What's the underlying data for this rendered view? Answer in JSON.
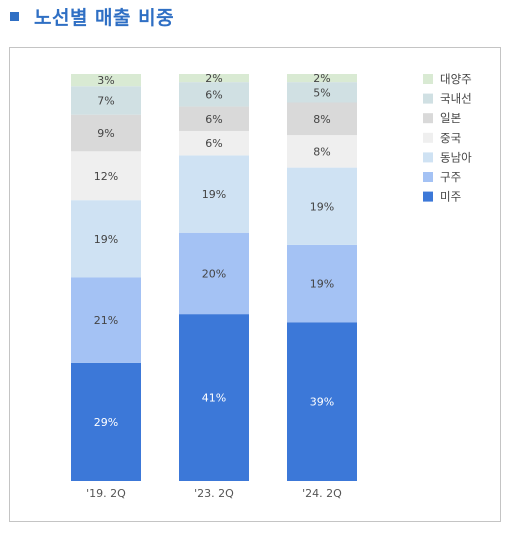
{
  "header": {
    "title": "노선별 매출 비중"
  },
  "chart_data": {
    "type": "bar",
    "stacked": true,
    "normalized_percent": true,
    "categories": [
      "'19. 2Q",
      "'23. 2Q",
      "'24. 2Q"
    ],
    "series": [
      {
        "name": "미주",
        "values": [
          29,
          41,
          39
        ],
        "labels": [
          "29%",
          "41%",
          "39%"
        ],
        "color": "#3c78d8"
      },
      {
        "name": "구주",
        "values": [
          21,
          20,
          19
        ],
        "labels": [
          "21%",
          "20%",
          "19%"
        ],
        "color": "#a4c2f4"
      },
      {
        "name": "동남아",
        "values": [
          19,
          19,
          19
        ],
        "labels": [
          "19%",
          "19%",
          "19%"
        ],
        "color": "#cfe2f3"
      },
      {
        "name": "중국",
        "values": [
          12,
          6,
          8
        ],
        "labels": [
          "12%",
          "6%",
          "8%"
        ],
        "color": "#efefef"
      },
      {
        "name": "일본",
        "values": [
          9,
          6,
          8
        ],
        "labels": [
          "9%",
          "6%",
          "8%"
        ],
        "color": "#d9d9d9"
      },
      {
        "name": "국내선",
        "values": [
          7,
          6,
          5
        ],
        "labels": [
          "7%",
          "6%",
          "5%"
        ],
        "color": "#d0e0e3"
      },
      {
        "name": "대양주",
        "values": [
          3,
          2,
          2
        ],
        "labels": [
          "3%",
          "2%",
          "2%"
        ],
        "color": "#d9ead3"
      }
    ],
    "legend_order": [
      "대양주",
      "국내선",
      "일본",
      "중국",
      "동남아",
      "구주",
      "미주"
    ],
    "legend_position": "right",
    "grid": false
  }
}
